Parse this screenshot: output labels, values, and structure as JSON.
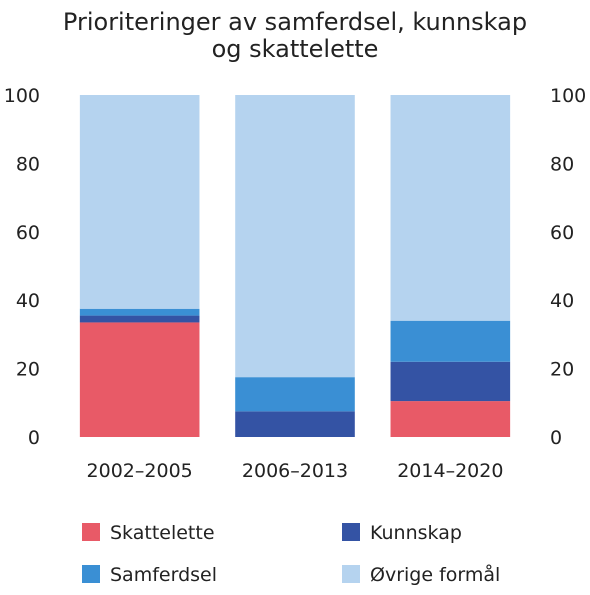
{
  "chart_data": {
    "type": "bar",
    "stacked": true,
    "title": [
      "Prioriteringer av samferdsel, kunnskap",
      "og skattelette"
    ],
    "xlabel": "",
    "ylabel": "",
    "ylim": [
      0,
      100
    ],
    "yticks": [
      "0",
      "20",
      "40",
      "60",
      "80",
      "100"
    ],
    "secondary_y_axis": true,
    "grid": false,
    "legend_position": "bottom",
    "categories": [
      "2002–2005",
      "2006–2013",
      "2014–2020"
    ],
    "series": [
      {
        "name": "Skattelette",
        "color": "#e85a67",
        "values": [
          33.5,
          0,
          10.5
        ]
      },
      {
        "name": "Kunnskap",
        "color": "#3453a4",
        "values": [
          2,
          7.5,
          11.5
        ]
      },
      {
        "name": "Samferdsel",
        "color": "#3a8fd4",
        "values": [
          2,
          10,
          12
        ]
      },
      {
        "name": "Øvrige formål",
        "color": "#b5d3ef",
        "values": [
          62.5,
          82.5,
          66
        ]
      }
    ]
  }
}
